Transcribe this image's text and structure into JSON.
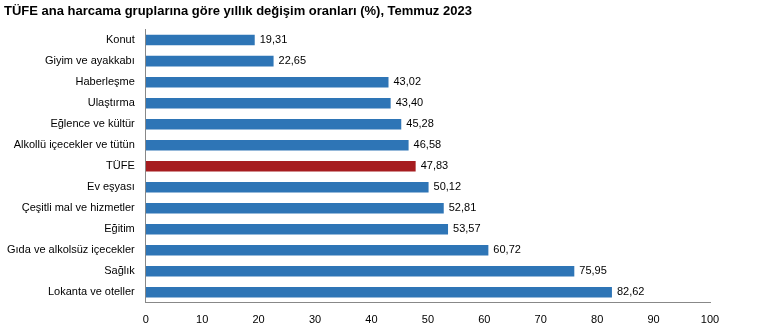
{
  "chart_data": {
    "type": "bar",
    "orientation": "horizontal",
    "title": "TÜFE ana harcama gruplarına göre yıllık değişim oranları (%), Temmuz 2023",
    "categories": [
      "Konut",
      "Giyim ve ayakkabı",
      "Haberleşme",
      "Ulaştırma",
      "Eğlence ve kültür",
      "Alkollü içecekler ve tütün",
      "TÜFE",
      "Ev eşyası",
      "Çeşitli mal ve hizmetler",
      "Eğitim",
      "Gıda ve alkolsüz içecekler",
      "Sağlık",
      "Lokanta ve oteller"
    ],
    "values": [
      19.31,
      22.65,
      43.02,
      43.4,
      45.28,
      46.58,
      47.83,
      50.12,
      52.81,
      53.57,
      60.72,
      75.95,
      82.62
    ],
    "value_labels": [
      "19,31",
      "22,65",
      "43,02",
      "43,40",
      "45,28",
      "46,58",
      "47,83",
      "50,12",
      "52,81",
      "53,57",
      "60,72",
      "75,95",
      "82,62"
    ],
    "colors": [
      "#2e75b6",
      "#2e75b6",
      "#2e75b6",
      "#2e75b6",
      "#2e75b6",
      "#2e75b6",
      "#a61c1f",
      "#2e75b6",
      "#2e75b6",
      "#2e75b6",
      "#2e75b6",
      "#2e75b6",
      "#2e75b6"
    ],
    "xlim": [
      0,
      100
    ],
    "xticks": [
      0,
      10,
      20,
      30,
      40,
      50,
      60,
      70,
      80,
      90,
      100
    ],
    "grid": false,
    "data_labels": true
  }
}
